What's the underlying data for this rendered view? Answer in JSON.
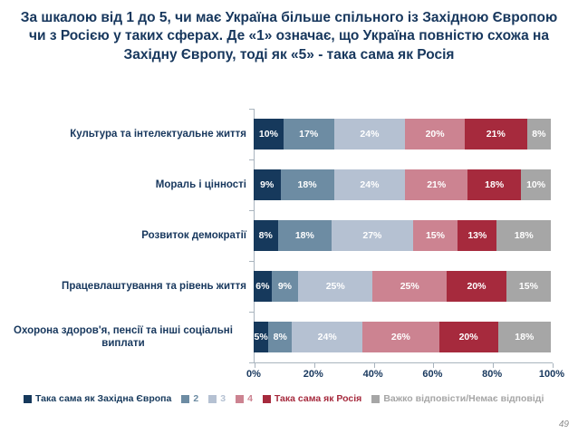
{
  "title": "За шкалою від 1 до 5, чи має Україна більше спільного із Західною Європою чи з Росією у таких сферах. Де «1» означає, що Україна повністю схожа на Західну Європу, тоді як «5» - така сама як Росія",
  "page_number": "49",
  "colors": {
    "title_text": "#17375D",
    "axis": "#A9B4BE",
    "bar_value_text": "#FFFFFF",
    "page_number_text": "#8C8C8C"
  },
  "chart_data": {
    "type": "bar",
    "variant": "horizontal-stacked",
    "stacked": true,
    "grid": false,
    "legend_position": "bottom",
    "value_suffix": "%",
    "xlim": [
      0,
      100
    ],
    "x_ticks": [
      "0%",
      "20%",
      "40%",
      "60%",
      "80%",
      "100%"
    ],
    "categories": [
      "Культура та інтелектуальне життя",
      "Мораль і цінності",
      "Розвиток демократії",
      "Працевлаштування та рівень життя",
      "Охорона здоров'я, пенсії та інші соціальні виплати"
    ],
    "series": [
      {
        "name": "Така сама як Західна Європа",
        "color": "#16395C",
        "values": [
          10,
          9,
          8,
          6,
          5
        ]
      },
      {
        "name": "2",
        "color": "#6D8CA3",
        "values": [
          17,
          18,
          18,
          9,
          8
        ]
      },
      {
        "name": "3",
        "color": "#B5C1D2",
        "values": [
          24,
          24,
          27,
          25,
          24
        ]
      },
      {
        "name": "4",
        "color": "#CC8391",
        "values": [
          20,
          21,
          15,
          25,
          26
        ]
      },
      {
        "name": "Така сама як Росія",
        "color": "#A62A3D",
        "values": [
          21,
          18,
          13,
          20,
          20
        ]
      },
      {
        "name": "Важко відповісти/Немає відповіді",
        "color": "#A6A6A6",
        "values": [
          8,
          10,
          18,
          15,
          18
        ]
      }
    ]
  }
}
